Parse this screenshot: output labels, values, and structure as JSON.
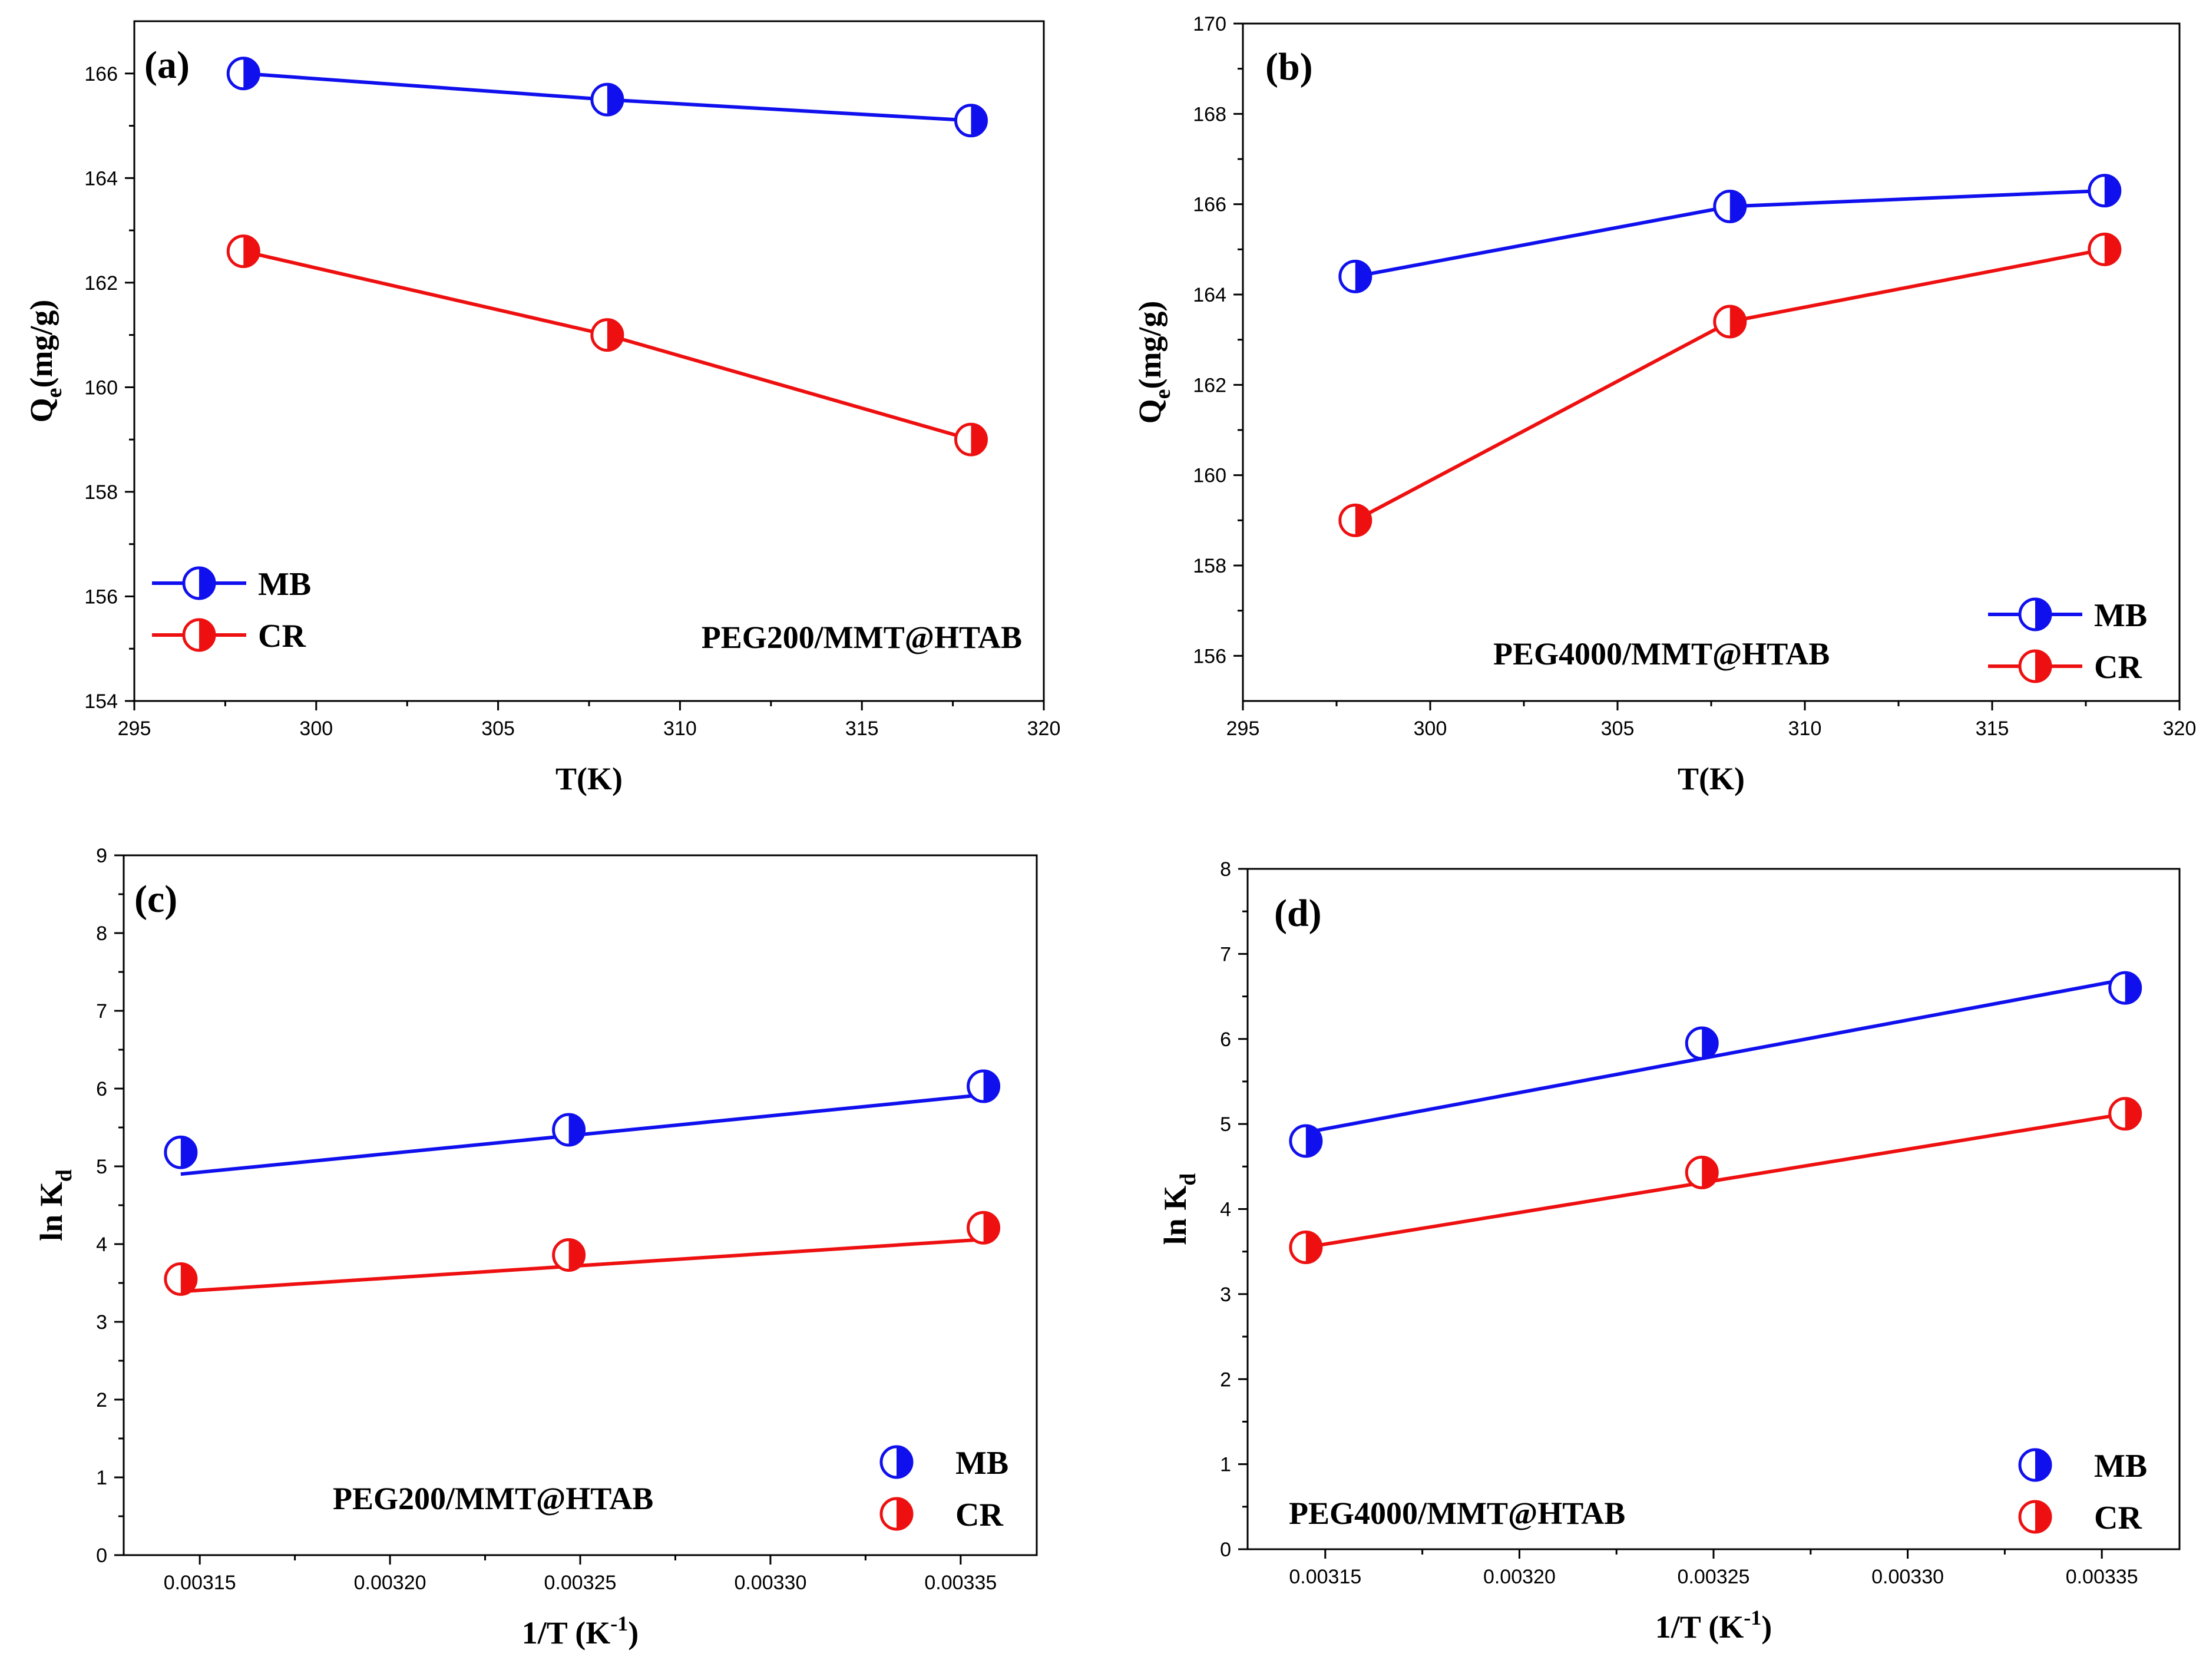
{
  "colors": {
    "MB": "#1010ee",
    "CR": "#ee1010"
  },
  "chart_data": [
    {
      "id": "a",
      "type": "line",
      "panel_label": "(a)",
      "annotation": "PEG200/MMT@HTAB",
      "xlabel": "T(K)",
      "ylabel": "Qe(mg/g)",
      "ylabel_main": "Q",
      "ylabel_sub": "e",
      "ylabel_rest": "(mg/g)",
      "xlim": [
        295,
        320
      ],
      "ylim": [
        154,
        167
      ],
      "xticks": [
        295,
        300,
        305,
        310,
        315,
        320
      ],
      "xtick_labels": [
        "295",
        "300",
        "305",
        "310",
        "315",
        "320"
      ],
      "yticks": [
        154,
        156,
        158,
        160,
        162,
        164,
        166
      ],
      "ytick_labels": [
        "154",
        "156",
        "158",
        "160",
        "162",
        "164",
        "166"
      ],
      "legend_position": "bottom-left",
      "series": [
        {
          "name": "MB",
          "style": "line-marker",
          "x": [
            298,
            308,
            318
          ],
          "y": [
            166.0,
            165.5,
            165.1
          ]
        },
        {
          "name": "CR",
          "style": "line-marker",
          "x": [
            298,
            308,
            318
          ],
          "y": [
            162.6,
            161.0,
            159.0
          ]
        }
      ]
    },
    {
      "id": "b",
      "type": "line",
      "panel_label": "(b)",
      "annotation": "PEG4000/MMT@HTAB",
      "xlabel": "T(K)",
      "ylabel": "Qe(mg/g)",
      "ylabel_main": "Q",
      "ylabel_sub": "e",
      "ylabel_rest": "(mg/g)",
      "xlim": [
        295,
        320
      ],
      "ylim": [
        155,
        170
      ],
      "xticks": [
        295,
        300,
        305,
        310,
        315,
        320
      ],
      "xtick_labels": [
        "295",
        "300",
        "305",
        "310",
        "315",
        "320"
      ],
      "yticks": [
        156,
        158,
        160,
        162,
        164,
        166,
        168,
        170
      ],
      "ytick_labels": [
        "156",
        "158",
        "160",
        "162",
        "164",
        "166",
        "168",
        "170"
      ],
      "legend_position": "bottom-right",
      "series": [
        {
          "name": "MB",
          "style": "line-marker",
          "x": [
            298,
            308,
            318
          ],
          "y": [
            164.4,
            165.95,
            166.3
          ]
        },
        {
          "name": "CR",
          "style": "line-marker",
          "x": [
            298,
            308,
            318
          ],
          "y": [
            159.0,
            163.4,
            165.0
          ]
        }
      ]
    },
    {
      "id": "c",
      "type": "scatter",
      "panel_label": "(c)",
      "annotation": "PEG200/MMT@HTAB",
      "xlabel": "1/T (K-1)",
      "xlabel_main": "1/T (K",
      "xlabel_sup": "-1",
      "xlabel_rest": ")",
      "ylabel": "ln Kd",
      "ylabel_main": "ln K",
      "ylabel_sub": "d",
      "ylabel_rest": "",
      "xlim": [
        0.00313,
        0.00337
      ],
      "ylim": [
        0,
        9
      ],
      "xticks": [
        0.00315,
        0.0032,
        0.00325,
        0.0033,
        0.00335
      ],
      "xtick_labels": [
        "0.00315",
        "0.00320",
        "0.00325",
        "0.00330",
        "0.00335"
      ],
      "yticks": [
        0,
        1,
        2,
        3,
        4,
        5,
        6,
        7,
        8,
        9
      ],
      "ytick_labels": [
        "0",
        "1",
        "2",
        "3",
        "4",
        "5",
        "6",
        "7",
        "8",
        "9"
      ],
      "legend_position": "bottom-right",
      "series": [
        {
          "name": "MB",
          "style": "marker-fit",
          "x": [
            0.003145,
            0.003247,
            0.003356
          ],
          "y": [
            5.18,
            5.47,
            6.03
          ],
          "fit": {
            "y_start": 4.9,
            "y_end": 5.92
          }
        },
        {
          "name": "CR",
          "style": "marker-fit",
          "x": [
            0.003145,
            0.003247,
            0.003356
          ],
          "y": [
            3.55,
            3.86,
            4.21
          ],
          "fit": {
            "y_start": 3.39,
            "y_end": 4.06
          }
        }
      ]
    },
    {
      "id": "d",
      "type": "scatter",
      "panel_label": "(d)",
      "annotation": "PEG4000/MMT@HTAB",
      "xlabel": "1/T (K-1)",
      "xlabel_main": "1/T (K",
      "xlabel_sup": "-1",
      "xlabel_rest": ")",
      "ylabel": "ln Kd",
      "ylabel_main": "ln K",
      "ylabel_sub": "d",
      "ylabel_rest": "",
      "xlim": [
        0.00313,
        0.00337
      ],
      "ylim": [
        0,
        8
      ],
      "xticks": [
        0.00315,
        0.0032,
        0.00325,
        0.0033,
        0.00335
      ],
      "xtick_labels": [
        "0.00315",
        "0.00320",
        "0.00325",
        "0.00330",
        "0.00335"
      ],
      "yticks": [
        0,
        1,
        2,
        3,
        4,
        5,
        6,
        7,
        8
      ],
      "ytick_labels": [
        "0",
        "1",
        "2",
        "3",
        "4",
        "5",
        "6",
        "7",
        "8"
      ],
      "legend_position": "bottom-right",
      "series": [
        {
          "name": "MB",
          "style": "marker-fit",
          "x": [
            0.003145,
            0.003247,
            0.003356
          ],
          "y": [
            4.8,
            5.95,
            6.6
          ],
          "fit": {
            "y_start": 4.9,
            "y_end": 6.7
          }
        },
        {
          "name": "CR",
          "style": "marker-fit",
          "x": [
            0.003145,
            0.003247,
            0.003356
          ],
          "y": [
            3.55,
            4.43,
            5.12
          ],
          "fit": {
            "y_start": 3.55,
            "y_end": 5.12
          }
        }
      ]
    }
  ]
}
